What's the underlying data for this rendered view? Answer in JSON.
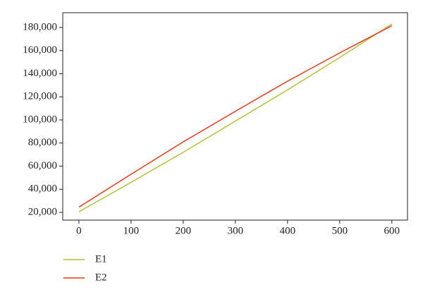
{
  "chart_data": {
    "type": "line",
    "x": [
      0,
      100,
      200,
      300,
      400,
      500,
      600
    ],
    "series": [
      {
        "name": "E1",
        "color": "#b8bf3c",
        "values": [
          20500,
          46000,
          72000,
          99000,
          126000,
          154000,
          183000
        ]
      },
      {
        "name": "E2",
        "color": "#e8391a",
        "values": [
          24500,
          53000,
          81000,
          107500,
          133500,
          158000,
          181500
        ]
      }
    ],
    "xlim": [
      -31,
      630
    ],
    "xticks": [
      0,
      100,
      200,
      300,
      400,
      500,
      600
    ],
    "ylim": [
      13300,
      192800
    ],
    "yticks": [
      {
        "value": 20000,
        "label": "20,000"
      },
      {
        "value": 40000,
        "label": "40,000"
      },
      {
        "value": 60000,
        "label": "60,000"
      },
      {
        "value": 80000,
        "label": "80,000"
      },
      {
        "value": 100000,
        "label": "100,000"
      },
      {
        "value": 120000,
        "label": "120,000"
      },
      {
        "value": 140000,
        "label": "140,000"
      },
      {
        "value": 160000,
        "label": "160,000"
      },
      {
        "value": 180000,
        "label": "180,000"
      }
    ],
    "legend": "bottom-left"
  }
}
